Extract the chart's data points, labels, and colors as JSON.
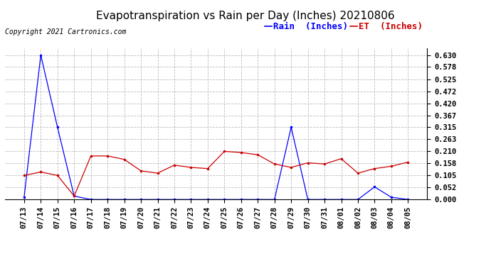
{
  "title": "Evapotranspiration vs Rain per Day (Inches) 20210806",
  "copyright": "Copyright 2021 Cartronics.com",
  "legend_rain": "Rain  (Inches)",
  "legend_et": "ET  (Inches)",
  "dates": [
    "07/13",
    "07/14",
    "07/15",
    "07/16",
    "07/17",
    "07/18",
    "07/19",
    "07/20",
    "07/21",
    "07/22",
    "07/23",
    "07/24",
    "07/25",
    "07/26",
    "07/27",
    "07/28",
    "07/29",
    "07/30",
    "07/31",
    "08/01",
    "08/02",
    "08/03",
    "08/04",
    "08/05"
  ],
  "rain": [
    0.01,
    0.63,
    0.315,
    0.015,
    0.0,
    0.0,
    0.0,
    0.0,
    0.0,
    0.0,
    0.0,
    0.0,
    0.0,
    0.0,
    0.0,
    0.0,
    0.315,
    0.0,
    0.0,
    0.0,
    0.0,
    0.055,
    0.01,
    0.0
  ],
  "et": [
    0.105,
    0.12,
    0.105,
    0.015,
    0.19,
    0.19,
    0.175,
    0.125,
    0.115,
    0.15,
    0.14,
    0.135,
    0.21,
    0.205,
    0.195,
    0.155,
    0.14,
    0.16,
    0.155,
    0.178,
    0.115,
    0.135,
    0.145,
    0.163
  ],
  "rain_color": "#0000ff",
  "et_color": "#cc0000",
  "ylim_min": 0.0,
  "ylim_max": 0.6615,
  "yticks": [
    0.0,
    0.052,
    0.105,
    0.158,
    0.21,
    0.263,
    0.315,
    0.367,
    0.42,
    0.472,
    0.525,
    0.578,
    0.63
  ],
  "background_color": "#ffffff",
  "grid_color": "#bbbbbb",
  "title_fontsize": 11,
  "tick_fontsize": 7.5,
  "copyright_fontsize": 7,
  "legend_fontsize": 9
}
